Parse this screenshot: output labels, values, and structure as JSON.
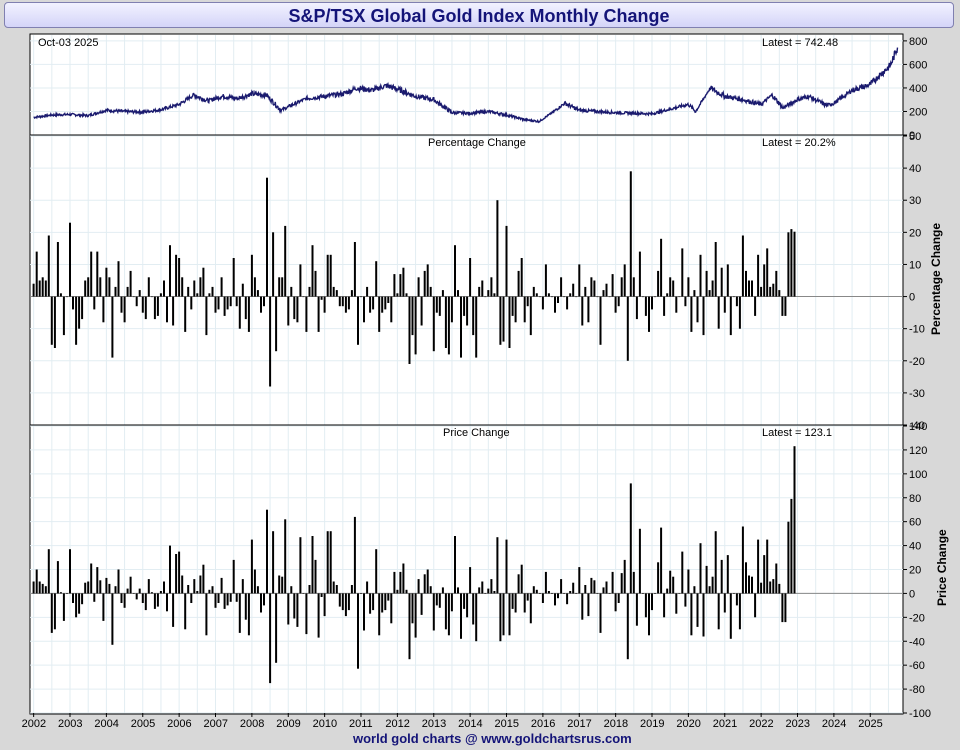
{
  "title": "S&P/TSX Global Gold Index Monthly Change",
  "footer": "world gold charts @ www.goldchartsrus.com",
  "chart_data": [
    {
      "type": "line",
      "panel": "price",
      "date_label": "Oct-03  2025",
      "latest_label": "Latest = 742.48",
      "ylim": [
        0,
        850
      ],
      "yticks": [
        0,
        200,
        400,
        600,
        800
      ],
      "anchors": [
        [
          2002.0,
          150
        ],
        [
          2002.5,
          170
        ],
        [
          2003.0,
          175
        ],
        [
          2003.5,
          165
        ],
        [
          2004.0,
          210
        ],
        [
          2004.5,
          200
        ],
        [
          2005.0,
          195
        ],
        [
          2005.5,
          215
        ],
        [
          2006.0,
          260
        ],
        [
          2006.4,
          340
        ],
        [
          2006.8,
          290
        ],
        [
          2007.2,
          330
        ],
        [
          2007.6,
          310
        ],
        [
          2008.0,
          350
        ],
        [
          2008.4,
          340
        ],
        [
          2008.8,
          210
        ],
        [
          2009.0,
          240
        ],
        [
          2009.5,
          310
        ],
        [
          2010.0,
          330
        ],
        [
          2010.5,
          350
        ],
        [
          2010.9,
          400
        ],
        [
          2011.3,
          380
        ],
        [
          2011.7,
          420
        ],
        [
          2012.0,
          390
        ],
        [
          2012.5,
          330
        ],
        [
          2013.0,
          300
        ],
        [
          2013.5,
          190
        ],
        [
          2014.0,
          185
        ],
        [
          2014.5,
          200
        ],
        [
          2015.0,
          170
        ],
        [
          2015.5,
          130
        ],
        [
          2015.9,
          115
        ],
        [
          2016.3,
          200
        ],
        [
          2016.6,
          270
        ],
        [
          2017.0,
          210
        ],
        [
          2017.5,
          200
        ],
        [
          2018.0,
          190
        ],
        [
          2018.5,
          185
        ],
        [
          2019.0,
          180
        ],
        [
          2019.5,
          220
        ],
        [
          2020.0,
          260
        ],
        [
          2020.2,
          200
        ],
        [
          2020.6,
          400
        ],
        [
          2021.0,
          330
        ],
        [
          2021.5,
          300
        ],
        [
          2022.0,
          260
        ],
        [
          2022.3,
          340
        ],
        [
          2022.6,
          230
        ],
        [
          2023.0,
          300
        ],
        [
          2023.3,
          330
        ],
        [
          2023.8,
          250
        ],
        [
          2024.0,
          270
        ],
        [
          2024.5,
          380
        ],
        [
          2025.0,
          430
        ],
        [
          2025.3,
          520
        ],
        [
          2025.55,
          590
        ],
        [
          2025.75,
          742.48
        ]
      ]
    },
    {
      "type": "bar",
      "panel": "percentage",
      "title": "Percentage Change",
      "latest_label": "Latest = 20.2%",
      "ylabel": "Percentage Change",
      "ylim": [
        -40,
        50
      ],
      "yticks": [
        -40,
        -30,
        -20,
        -10,
        0,
        10,
        20,
        30,
        40,
        50
      ]
    },
    {
      "type": "bar",
      "panel": "price_change",
      "title": "Price Change",
      "latest_label": "Latest = 123.1",
      "ylabel": "Price Change",
      "ylim": [
        -100,
        140
      ],
      "yticks": [
        -100,
        -80,
        -60,
        -40,
        -20,
        0,
        20,
        40,
        60,
        80,
        100,
        120,
        140
      ]
    }
  ],
  "x_axis": {
    "range": [
      2001.9,
      2025.9
    ],
    "ticks": [
      "2002",
      "2003",
      "2004",
      "2005",
      "2006",
      "2007",
      "2008",
      "2009",
      "2010",
      "2011",
      "2012",
      "2013",
      "2014",
      "2015",
      "2016",
      "2017",
      "2018",
      "2019",
      "2020",
      "2021",
      "2022",
      "2023",
      "2024",
      "2025"
    ]
  },
  "monthly_pct": [
    4,
    14,
    5,
    6,
    5,
    19,
    -15,
    -16,
    17,
    1,
    -12,
    0,
    23,
    -4,
    -15,
    -10,
    -7,
    5,
    6,
    14,
    -4,
    14,
    6,
    -8,
    9,
    6,
    -19,
    3,
    11,
    -5,
    -8,
    3,
    8,
    0,
    -3,
    2,
    -5,
    -7,
    6,
    0,
    -7,
    -6,
    1,
    5,
    -8,
    16,
    -9,
    13,
    12,
    6,
    -11,
    3,
    -4,
    5,
    1,
    6,
    9,
    -12,
    1,
    3,
    -5,
    -4,
    6,
    -6,
    -4,
    -3,
    12,
    -3,
    -10,
    4,
    -7,
    -11,
    13,
    6,
    2,
    -5,
    -3,
    37,
    -28,
    20,
    -17,
    6,
    6,
    22,
    -9,
    3,
    -7,
    -8,
    10,
    0,
    -11,
    3,
    16,
    8,
    -11,
    -1,
    -5,
    13,
    13,
    3,
    2,
    -3,
    -3,
    -5,
    -4,
    2,
    17,
    -15,
    0,
    -8,
    3,
    -5,
    -4,
    11,
    -11,
    -5,
    -4,
    -2,
    -8,
    7,
    1,
    7,
    9,
    1,
    -21,
    -12,
    -18,
    6,
    -9,
    8,
    10,
    3,
    -17,
    -5,
    -6,
    2,
    -16,
    -18,
    -8,
    16,
    2,
    -19,
    -6,
    -9,
    12,
    -12,
    -19,
    3,
    5,
    0,
    2,
    6,
    1,
    30,
    -15,
    -14,
    22,
    -16,
    -6,
    -8,
    8,
    12,
    -8,
    -3,
    -12,
    3,
    1,
    0,
    -4,
    10,
    1,
    0,
    -5,
    -2,
    6,
    0,
    -4,
    1,
    4,
    0,
    10,
    -9,
    3,
    -8,
    6,
    5,
    0,
    -15,
    2,
    4,
    0,
    7,
    -5,
    -3,
    6,
    10,
    -20,
    39,
    6,
    -7,
    14,
    0,
    -6,
    -11,
    -4,
    0,
    8,
    18,
    -6,
    1,
    6,
    5,
    -5,
    0,
    15,
    -3,
    6,
    -11,
    2,
    -8,
    13,
    -12,
    8,
    2,
    5,
    17,
    -10,
    9,
    -5,
    10,
    -12,
    0,
    -3,
    -10,
    19,
    8,
    5,
    5,
    -6,
    13,
    3,
    10,
    15,
    3,
    4,
    8,
    2,
    -6,
    -6,
    20,
    21,
    20.2
  ],
  "monthly_price": [
    10,
    20,
    10,
    8,
    6,
    37,
    -33,
    -30,
    27,
    1,
    -23,
    0,
    37,
    -8,
    -20,
    -17,
    -9,
    9,
    10,
    25,
    -7,
    22,
    11,
    -23,
    13,
    8,
    -43,
    6,
    20,
    -8,
    -12,
    4,
    14,
    0,
    -5,
    4,
    -8,
    -14,
    12,
    1,
    -13,
    -11,
    2,
    10,
    -15,
    40,
    -28,
    33,
    35,
    15,
    -30,
    7,
    -8,
    12,
    2,
    15,
    24,
    -35,
    3,
    6,
    -12,
    -8,
    13,
    -13,
    -10,
    -7,
    28,
    -7,
    -33,
    12,
    -22,
    -35,
    45,
    20,
    6,
    -16,
    -10,
    70,
    -75,
    52,
    -58,
    15,
    14,
    62,
    -26,
    6,
    -21,
    -28,
    47,
    0,
    -34,
    7,
    48,
    28,
    -37,
    -3,
    -19,
    52,
    52,
    10,
    7,
    -11,
    -14,
    -19,
    -14,
    7,
    64,
    -63,
    0,
    -31,
    10,
    -17,
    -14,
    37,
    -35,
    -16,
    -14,
    -6,
    -25,
    18,
    3,
    18,
    25,
    3,
    -55,
    -25,
    -37,
    12,
    -18,
    16,
    20,
    6,
    -31,
    -10,
    -12,
    5,
    -30,
    -35,
    -15,
    48,
    5,
    -38,
    -13,
    -20,
    22,
    -26,
    -40,
    5,
    10,
    0,
    4,
    12,
    2,
    47,
    -40,
    -35,
    45,
    -35,
    -13,
    -16,
    16,
    24,
    -16,
    -6,
    -25,
    6,
    3,
    0,
    -8,
    18,
    2,
    0,
    -10,
    -4,
    12,
    0,
    -9,
    2,
    9,
    0,
    22,
    -22,
    7,
    -19,
    13,
    11,
    0,
    -33,
    5,
    10,
    0,
    18,
    -15,
    -8,
    17,
    28,
    -55,
    92,
    18,
    -27,
    54,
    0,
    -20,
    -35,
    -14,
    0,
    26,
    55,
    -20,
    4,
    19,
    14,
    -17,
    0,
    35,
    -11,
    20,
    -35,
    6,
    -28,
    42,
    -36,
    23,
    6,
    14,
    52,
    -30,
    28,
    -16,
    32,
    -38,
    0,
    -10,
    -30,
    56,
    26,
    15,
    14,
    -20,
    45,
    9,
    32,
    45,
    10,
    12,
    25,
    8,
    -24,
    -24,
    60,
    79,
    123.1
  ]
}
